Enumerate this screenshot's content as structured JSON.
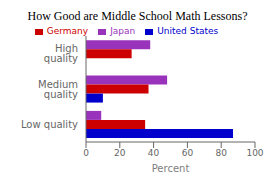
{
  "chart_data": {
    "type": "bar",
    "orientation": "horizontal",
    "title": "How Good are Middle School Math Lessons?",
    "categories": [
      "High quality",
      "Medium quality",
      "Low quality"
    ],
    "series": [
      {
        "name": "Japan",
        "color": "#9933BB",
        "values": [
          38,
          48,
          9
        ]
      },
      {
        "name": "Germany",
        "color": "#CC0000",
        "values": [
          27,
          37,
          35
        ]
      },
      {
        "name": "United States",
        "color": "#0000CC",
        "values": [
          0,
          10,
          87
        ]
      }
    ],
    "xlabel": "Percent",
    "xlim": [
      0,
      100
    ],
    "xticks": [
      0,
      20,
      40,
      60,
      80,
      100
    ],
    "legend": "top",
    "grid": false
  }
}
